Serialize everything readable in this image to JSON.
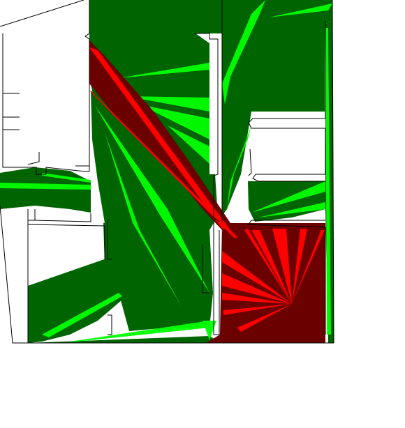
{
  "diagram": {
    "kind": "visibility-polygon floor plan",
    "labels": [],
    "colors": {
      "background": "#ffffff",
      "visible_region": "#006400",
      "visible_rays": "#00ff00",
      "highlight_region": "#6b0000",
      "highlight_rays": "#ff0000",
      "walls": "#000000"
    },
    "legend": []
  }
}
